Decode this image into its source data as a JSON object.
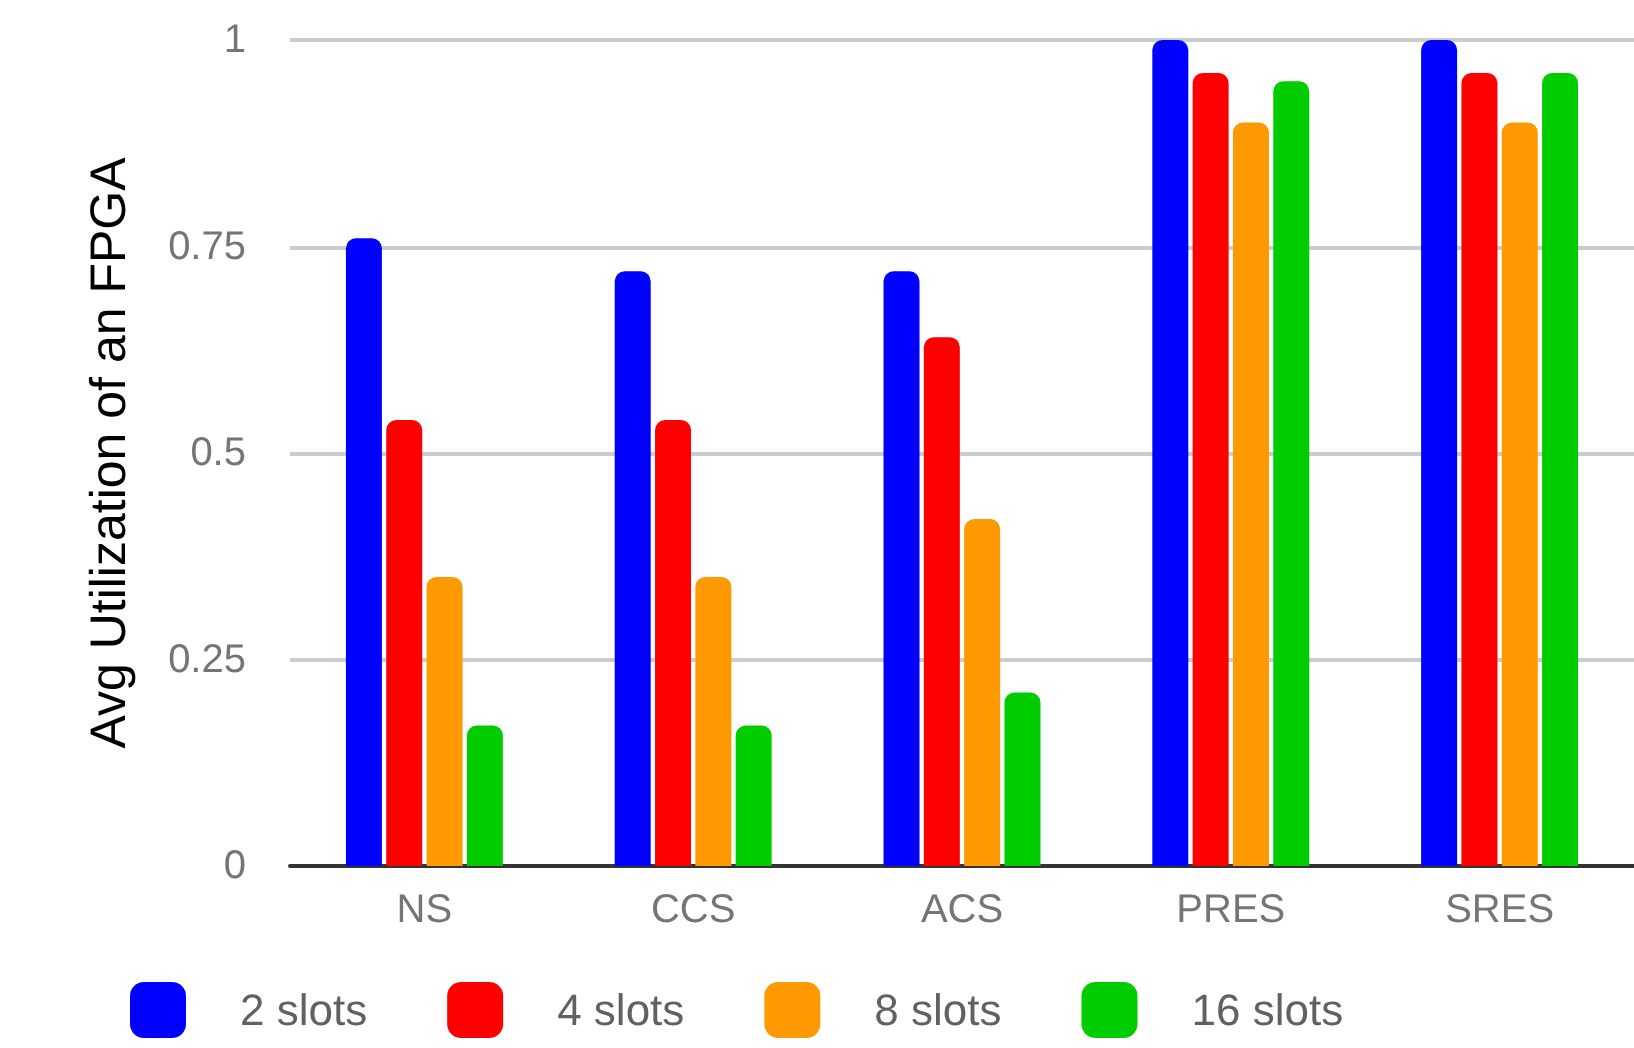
{
  "chart_data": {
    "type": "bar",
    "ylabel": "Avg Utilization of an FPGA",
    "categories": [
      "NS",
      "CCS",
      "ACS",
      "PRES",
      "SRES"
    ],
    "series": [
      {
        "name": "2 slots",
        "color": "#0000ff",
        "values": [
          0.76,
          0.72,
          0.72,
          1.0,
          1.0
        ]
      },
      {
        "name": "4 slots",
        "color": "#ff0000",
        "values": [
          0.54,
          0.54,
          0.64,
          0.96,
          0.96
        ]
      },
      {
        "name": "8 slots",
        "color": "#ff9900",
        "values": [
          0.35,
          0.35,
          0.42,
          0.9,
          0.9
        ]
      },
      {
        "name": "16 slots",
        "color": "#00cc00",
        "values": [
          0.17,
          0.17,
          0.21,
          0.95,
          0.96
        ]
      }
    ],
    "ylim": [
      0,
      1
    ],
    "yticks": [
      0,
      0.25,
      0.5,
      0.75,
      1
    ],
    "grid": "y",
    "legend": "bottom"
  }
}
